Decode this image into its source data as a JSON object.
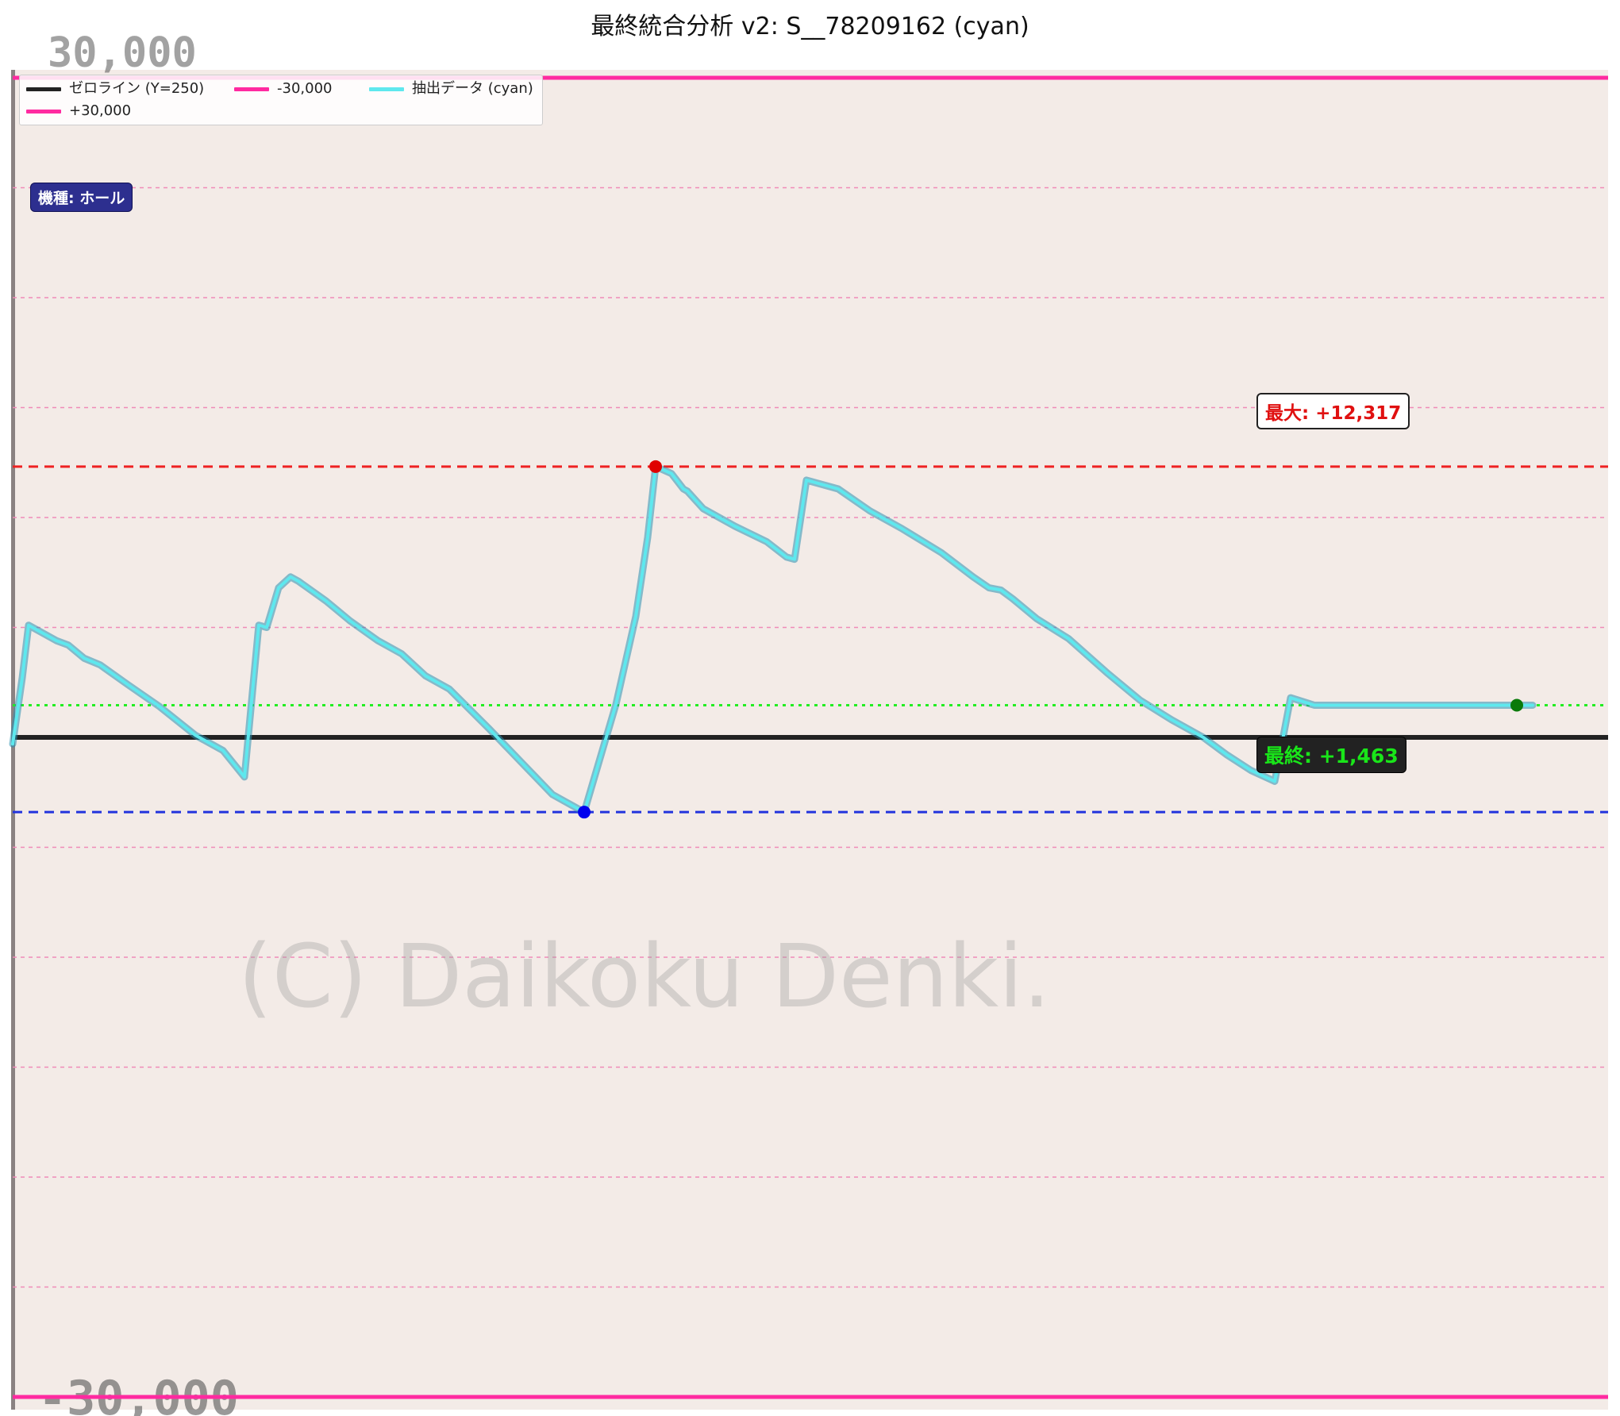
{
  "title": "最終統合分析 v2: S__78209162 (cyan)",
  "legend": {
    "items": [
      {
        "label": "ゼロライン (Y=250)",
        "color": "#222222"
      },
      {
        "label": "-30,000",
        "color": "#ff2aa0"
      },
      {
        "label": "抽出データ (cyan)",
        "color": "#5ee8ee"
      },
      {
        "label": "+30,000",
        "color": "#ff2aa0"
      }
    ]
  },
  "badges": {
    "machine": "機種: ホール",
    "max": "最大: +12,317",
    "final": "最終: +1,463"
  },
  "watermark": "(C) Daikoku Denki.",
  "axis_labels": {
    "top": "30,000",
    "bottom": "-30,000"
  },
  "colors": {
    "background": "#f3ebe7",
    "series": "#4fc8dc",
    "zero_line": "#222222",
    "bound_lines": "#ff2aa0",
    "max_line": "#ee2222",
    "min_line": "#2233dd",
    "final_line": "#22ee22"
  },
  "chart_data": {
    "type": "line",
    "title": "最終統合分析 v2: S__78209162 (cyan)",
    "ylim": [
      -30000,
      30000
    ],
    "grid": true,
    "legend_position": "top-left",
    "reference_lines": [
      {
        "name": "ゼロライン (Y=250)",
        "y": 0
      },
      {
        "name": "+30,000",
        "y": 30000
      },
      {
        "name": "-30,000",
        "y": -30000
      },
      {
        "name": "max",
        "y": 12317
      },
      {
        "name": "min",
        "y": -3400
      },
      {
        "name": "final",
        "y": 1463
      }
    ],
    "series": [
      {
        "name": "抽出データ (cyan)",
        "x": [
          0,
          12,
          20,
          55,
          70,
          90,
          110,
          145,
          185,
          230,
          265,
          292,
          310,
          320,
          335,
          350,
          360,
          395,
          425,
          460,
          490,
          520,
          550,
          600,
          640,
          680,
          720,
          760,
          785,
          800,
          810,
          830,
          845,
          850,
          870,
          910,
          950,
          975,
          985,
          1000,
          1040,
          1080,
          1120,
          1170,
          1210,
          1230,
          1245,
          1260,
          1290,
          1330,
          1380,
          1420,
          1460,
          1500,
          1530,
          1560,
          1590,
          1610,
          1640,
          1670,
          1700,
          1730,
          1760,
          1790,
          1820,
          1850,
          1870,
          1880,
          1895,
          1915
        ],
        "values": [
          -300,
          2700,
          5100,
          4400,
          4200,
          3600,
          3300,
          2400,
          1400,
          100,
          -600,
          -1800,
          5100,
          5000,
          6800,
          7300,
          7100,
          6200,
          5300,
          4400,
          3800,
          2800,
          2200,
          400,
          -1100,
          -2600,
          -3400,
          1500,
          5500,
          9100,
          12317,
          12000,
          11300,
          11200,
          10400,
          9600,
          8900,
          8200,
          8100,
          11700,
          11300,
          10300,
          9500,
          8400,
          7300,
          6800,
          6700,
          6300,
          5400,
          4500,
          2900,
          1700,
          800,
          0,
          -800,
          -1500,
          -2000,
          1800,
          1463,
          1463,
          1463,
          1463,
          1463,
          1463,
          1463,
          1463,
          1463,
          1463,
          1463,
          1463
        ]
      }
    ]
  }
}
